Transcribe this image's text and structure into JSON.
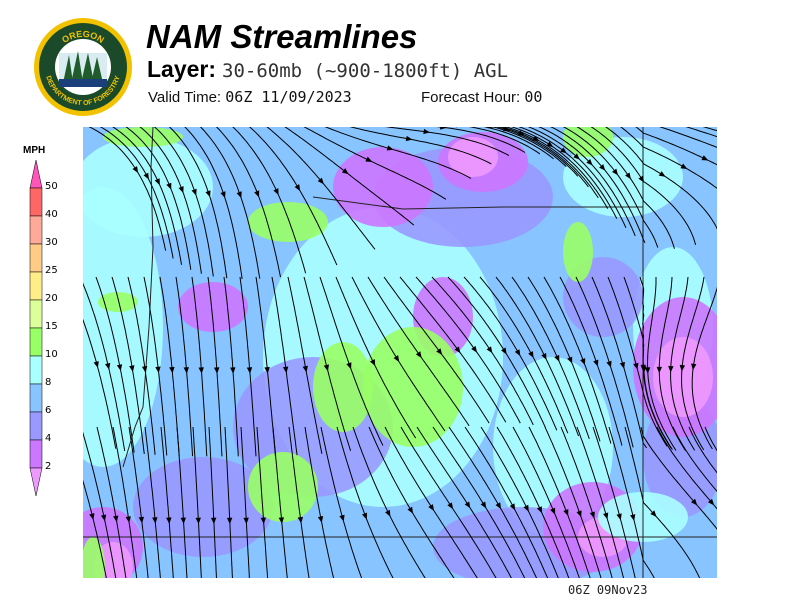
{
  "header": {
    "title": "NAM Streamlines",
    "layer_label": "Layer:",
    "layer_value": "30-60mb (~900-1800ft) AGL",
    "valid_label": "Valid Time:",
    "valid_value": "06Z 11/09/2023",
    "forecast_label": "Forecast Hour:",
    "forecast_value": "00"
  },
  "logo": {
    "top_text": "OREGON",
    "bottom_text": "DEPARTMENT OF FORESTRY"
  },
  "legend": {
    "unit": "MPH",
    "ticks": [
      "50",
      "40",
      "30",
      "25",
      "20",
      "15",
      "10",
      "8",
      "6",
      "4",
      "2"
    ],
    "colors": [
      "#ff55bb",
      "#ff6666",
      "#ffaa99",
      "#ffcc88",
      "#ffee88",
      "#ddff99",
      "#99ff66",
      "#aaffff",
      "#88c4ff",
      "#9999ff",
      "#cc77ff",
      "#ee99ff"
    ]
  },
  "footer": {
    "timestamp": "06Z 09Nov23"
  },
  "map": {
    "field": "wind speed (MPH) with streamlines",
    "background_color": "#88c4ff"
  }
}
